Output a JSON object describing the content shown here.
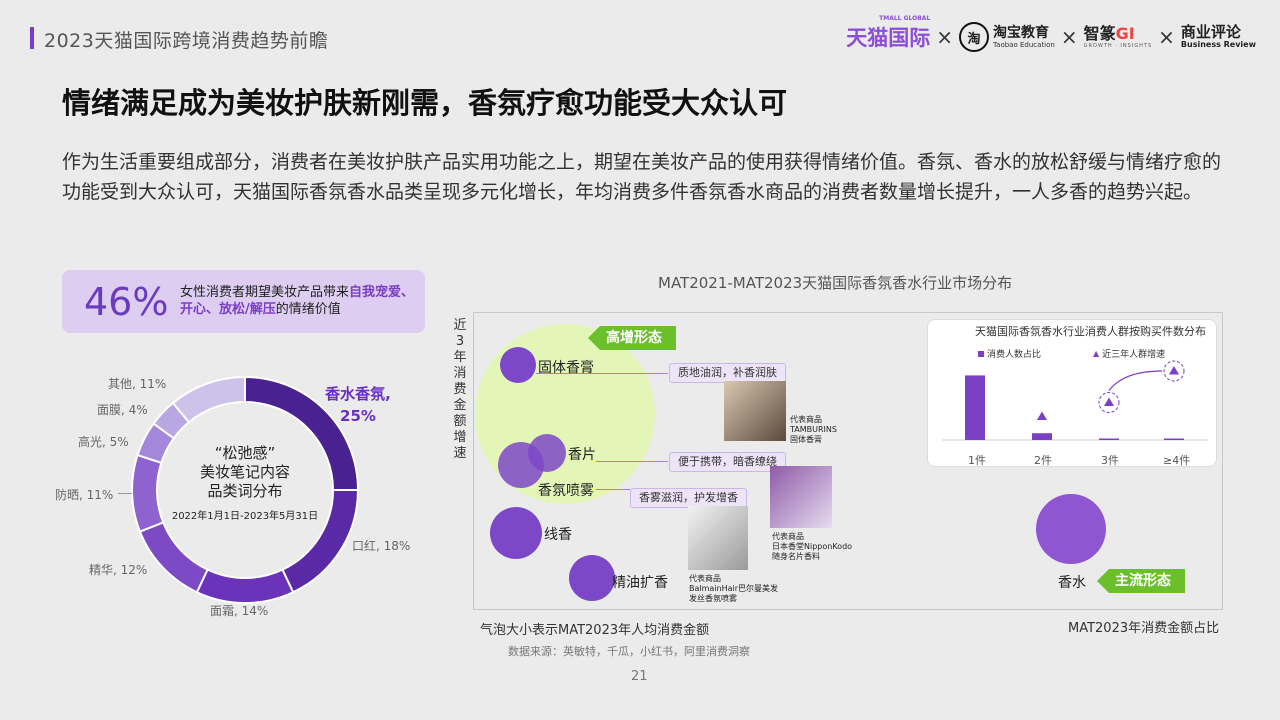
{
  "header": {
    "title": "2023天猫国际跨境消费趋势前瞻",
    "logos": {
      "tmall_cn": "天猫国际",
      "tmall_en": "TMALL GLOBAL",
      "times": "×",
      "taobao_icon": "淘",
      "taobao_cn": "淘宝教育",
      "taobao_en": "Taobao Education",
      "zhizuan_cn_a": "智篆",
      "zhizuan_cn_b": "GI",
      "zhizuan_en": "GROWTH · INSIGHTS",
      "br_cn": "商业评论",
      "br_en": "Business Review"
    }
  },
  "title": "情绪满足成为美妆护肤新刚需，香氛疗愈功能受大众认可",
  "description": "作为生活重要组成部分，消费者在美妆护肤产品实用功能之上，期望在美妆产品的使用获得情绪价值。香氛、香水的放松舒缓与情绪疗愈的功能受到大众认可，天猫国际香氛香水品类呈现多元化增长，年均消费多件香氛香水商品的消费者数量增长提升，一人多香的趋势兴起。",
  "stat": {
    "value": "46%",
    "text_a": "女性消费者期望美妆产品带来",
    "text_hl": "自我宠爱、开心、放松/解压",
    "text_b": "的情绪价值"
  },
  "donut": {
    "center_line1": "“松弛感”",
    "center_line2": "美妆笔记内容",
    "center_line3": "品类词分布",
    "date_range": "2022年1月1日-2023年5月31日",
    "colors": [
      "#4a2190",
      "#5a2aa6",
      "#6a33ba",
      "#7d4ac6",
      "#8e62cf",
      "#a387db",
      "#b9a7e3",
      "#cdc2ea"
    ],
    "segments": [
      {
        "label": "香水香氛,",
        "value_label": "25%",
        "value": 25
      },
      {
        "label": "口红, 18%",
        "value": 18
      },
      {
        "label": "面霜, 14%",
        "value": 14
      },
      {
        "label": "精华, 12%",
        "value": 12
      },
      {
        "label": "防晒, 11%",
        "value": 11
      },
      {
        "label": "高光, 5%",
        "value": 5
      },
      {
        "label": "面膜, 4%",
        "value": 4
      },
      {
        "label": "其他, 11%",
        "value": 11
      }
    ]
  },
  "bubble_chart": {
    "title": "MAT2021-MAT2023天猫国际香氛香水行业市场分布",
    "y_label": "近3年消费金额增速",
    "x_label": "MAT2023年消费金额占比",
    "bubble_note": "气泡大小表示MAT2023年人均消费金额",
    "tag_high": "高增形态",
    "tag_main": "主流形态",
    "bubbles": [
      {
        "name": "固体香膏",
        "callout": "质地油润，补香润肤"
      },
      {
        "name": "香片",
        "callout": "便于携带，暗香缭绕"
      },
      {
        "name": "香氛喷雾",
        "callout": "香雾滋润，护发增香"
      },
      {
        "name": "线香"
      },
      {
        "name": "精油扩香"
      },
      {
        "name": "香水"
      }
    ],
    "reps": [
      {
        "l1": "代表商品",
        "l2": "TAMBURINS",
        "l3": "固体香膏"
      },
      {
        "l1": "代表商品",
        "l2": "日本香堂NipponKodo",
        "l3": "随身名片香料"
      },
      {
        "l1": "代表商品",
        "l2": "BalmainHair巴尔曼美发",
        "l3": "发丝香氛喷雾"
      }
    ]
  },
  "inset_chart": {
    "title": "天猫国际香氛香水行业消费人群按购买件数分布",
    "legend_share": "消费人数占比",
    "legend_growth": "近三年人群增速",
    "categories": [
      "1件",
      "2件",
      "3件",
      "≥4件"
    ],
    "share_values": [
      0.95,
      0.1,
      0.02,
      0.01
    ],
    "growth_levels": [
      0.1,
      0.25,
      0.45,
      0.9
    ]
  },
  "source": "数据来源：英敏特，千瓜，小红书，阿里消费洞察",
  "page_number": "21"
}
